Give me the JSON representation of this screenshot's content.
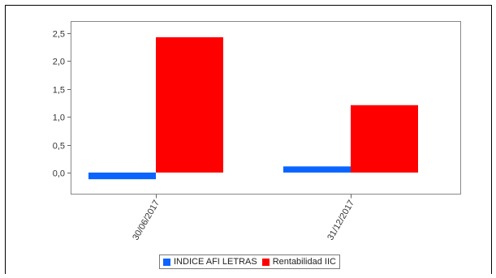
{
  "chart_data": {
    "type": "bar",
    "categories": [
      "30/06/2017",
      "31/12/2017"
    ],
    "series": [
      {
        "name": "INDICE AFI LETRAS",
        "color": "#0a64ff",
        "values": [
          -0.12,
          0.11
        ]
      },
      {
        "name": "Rentabilidad IIC",
        "color": "#ff0000",
        "values": [
          2.43,
          1.21
        ]
      }
    ],
    "yticks": [
      "0,0",
      "0,5",
      "1,0",
      "1,5",
      "2,0",
      "2,5"
    ],
    "ylim": [
      -0.38,
      2.72
    ],
    "grid": false,
    "legend_position": "bottom"
  }
}
